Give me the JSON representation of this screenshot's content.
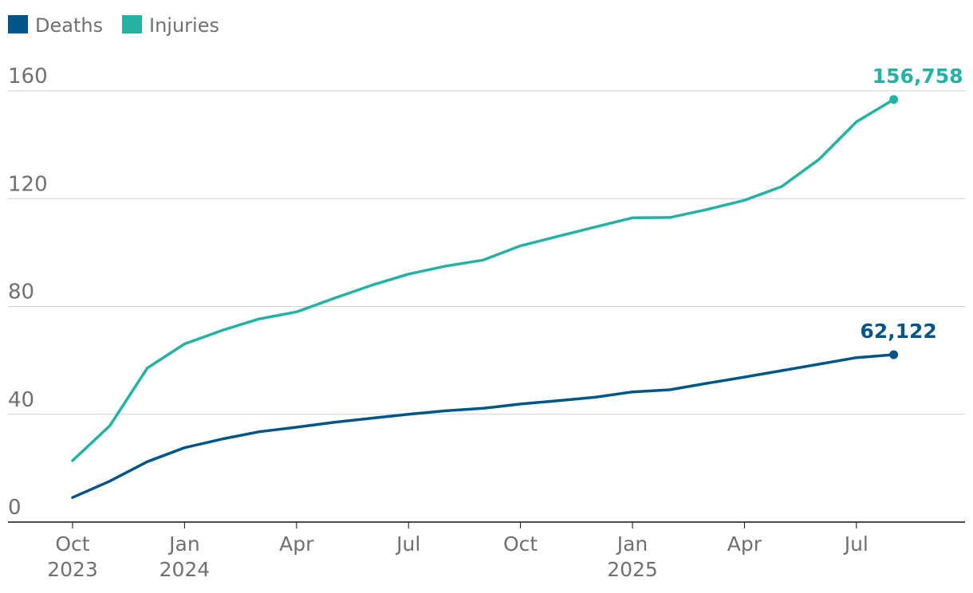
{
  "chart_data": {
    "type": "line",
    "title": "",
    "xlabel": "",
    "ylabel": "",
    "ylim": [
      0,
      160
    ],
    "yticks": [
      0,
      40,
      80,
      120,
      160
    ],
    "grid": true,
    "legend_position": "top-left",
    "x_tick_labels": [
      {
        "month": "Oct",
        "year": "2023"
      },
      {
        "month": "Jan",
        "year": "2024"
      },
      {
        "month": "Apr",
        "year": ""
      },
      {
        "month": "Jul",
        "year": ""
      },
      {
        "month": "Oct",
        "year": ""
      },
      {
        "month": "Jan",
        "year": "2025"
      },
      {
        "month": "Apr",
        "year": ""
      },
      {
        "month": "Jul",
        "year": ""
      }
    ],
    "x": [
      "2023-10",
      "2023-11",
      "2023-12",
      "2024-01",
      "2024-02",
      "2024-03",
      "2024-04",
      "2024-05",
      "2024-06",
      "2024-07",
      "2024-08",
      "2024-09",
      "2024-10",
      "2024-11",
      "2024-12",
      "2025-01",
      "2025-02",
      "2025-03",
      "2025-04",
      "2025-05",
      "2025-06",
      "2025-07",
      "2025-08"
    ],
    "series": [
      {
        "name": "Deaths",
        "color": "#005689",
        "values": [
          9.1,
          15.2,
          22.4,
          27.6,
          30.8,
          33.5,
          35.2,
          37.0,
          38.5,
          40.0,
          41.3,
          42.2,
          43.8,
          45.0,
          46.3,
          48.3,
          49.1,
          51.5,
          53.8,
          56.2,
          58.6,
          61.0,
          62.1
        ],
        "end_label": "62,122"
      },
      {
        "name": "Injuries",
        "color": "#22b3a4",
        "values": [
          22.8,
          35.8,
          57.1,
          66.1,
          71.1,
          75.4,
          78.0,
          83.0,
          87.8,
          92.0,
          95.0,
          97.2,
          102.5,
          106.0,
          109.5,
          112.9,
          113.0,
          116.0,
          119.4,
          124.5,
          134.6,
          148.5,
          156.8
        ],
        "end_label": "156,758"
      }
    ]
  }
}
